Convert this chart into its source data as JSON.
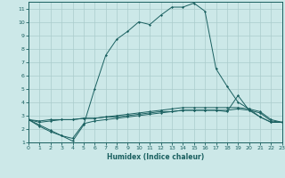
{
  "xlabel": "Humidex (Indice chaleur)",
  "bg_color": "#cce8e8",
  "grid_color": "#aacccc",
  "line_color": "#1a6060",
  "xlim": [
    0,
    23
  ],
  "ylim": [
    1,
    11.5
  ],
  "xticks": [
    0,
    1,
    2,
    3,
    4,
    5,
    6,
    7,
    8,
    9,
    10,
    11,
    12,
    13,
    14,
    15,
    16,
    17,
    18,
    19,
    20,
    21,
    22,
    23
  ],
  "yticks": [
    1,
    2,
    3,
    4,
    5,
    6,
    7,
    8,
    9,
    10,
    11
  ],
  "curves": [
    [
      2.7,
      2.2,
      1.8,
      1.5,
      1.1,
      2.3,
      5.0,
      7.5,
      8.7,
      9.3,
      10.0,
      9.8,
      10.5,
      11.1,
      11.1,
      11.4,
      10.8,
      6.5,
      5.2,
      4.0,
      3.5,
      2.9,
      2.5,
      2.5
    ],
    [
      2.7,
      2.3,
      1.9,
      1.5,
      1.3,
      2.4,
      2.6,
      2.7,
      2.8,
      2.9,
      3.0,
      3.1,
      3.2,
      3.3,
      3.4,
      3.4,
      3.4,
      3.4,
      3.3,
      4.5,
      3.4,
      2.9,
      2.5,
      2.5
    ],
    [
      2.7,
      2.5,
      2.6,
      2.7,
      2.7,
      2.8,
      2.8,
      2.9,
      3.0,
      3.1,
      3.2,
      3.3,
      3.4,
      3.5,
      3.6,
      3.6,
      3.6,
      3.6,
      3.6,
      3.6,
      3.5,
      3.3,
      2.7,
      2.5
    ],
    [
      2.7,
      2.6,
      2.7,
      2.7,
      2.7,
      2.8,
      2.8,
      2.9,
      2.9,
      3.0,
      3.1,
      3.2,
      3.3,
      3.3,
      3.4,
      3.4,
      3.4,
      3.4,
      3.4,
      3.5,
      3.4,
      3.2,
      2.6,
      2.5
    ]
  ]
}
